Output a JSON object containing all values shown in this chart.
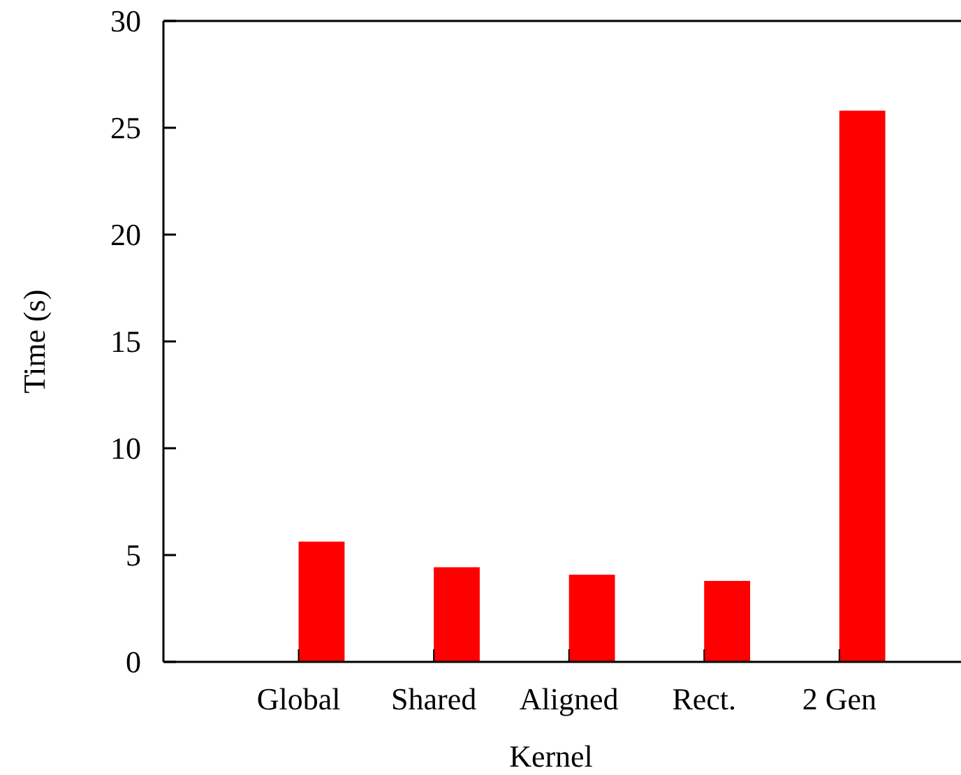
{
  "chart_data": {
    "type": "bar",
    "xlabel": "Kernel",
    "ylabel": "Time (s)",
    "categories": [
      "Global",
      "Shared",
      "Aligned",
      "Rect.",
      "2 Gen"
    ],
    "values": [
      5.63,
      4.43,
      4.08,
      3.79,
      25.8
    ],
    "color": "#ff0000",
    "ylim": [
      0,
      30
    ],
    "yticks": [
      0,
      5,
      10,
      15,
      20,
      25,
      30
    ],
    "grid": false
  }
}
